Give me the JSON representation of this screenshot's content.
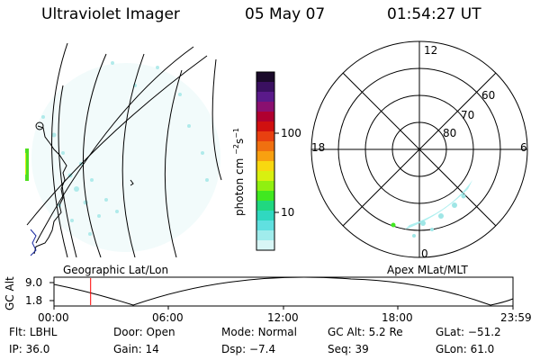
{
  "header": {
    "title": "Ultraviolet Imager",
    "date": "05 May 07",
    "time": "01:54:27 UT"
  },
  "map_labels": {
    "left": "Geographic Lat/Lon",
    "right": "Apex MLat/MLT"
  },
  "colorbar": {
    "unit_label": "photon cm",
    "unit_sup1": "−2",
    "unit_mid": "s",
    "unit_sup2": "−1",
    "ticks": [
      "100",
      "10"
    ],
    "colors": [
      "#1a0a2a",
      "#3a1060",
      "#5a1a8a",
      "#8a1070",
      "#b00030",
      "#d01010",
      "#e84010",
      "#f07010",
      "#f8a010",
      "#f8d810",
      "#d8f010",
      "#90f010",
      "#40e820",
      "#20d880",
      "#30d8c0",
      "#60e0e0",
      "#a0ecec",
      "#d8f6f6"
    ]
  },
  "polar": {
    "mlt": [
      "12",
      "18",
      "6",
      "0"
    ],
    "mlat": [
      "60",
      "70",
      "80"
    ]
  },
  "timeline": {
    "ylabel": "GC Alt",
    "yticks": [
      "9.0",
      "1.8"
    ],
    "xticks": [
      "00:00",
      "06:00",
      "12:00",
      "18:00",
      "23:59"
    ],
    "marker_fraction": 0.0798
  },
  "info": [
    [
      {
        "label": "Flt:",
        "value": "LBHL"
      },
      {
        "label": "Door:",
        "value": "Open"
      },
      {
        "label": "Mode:",
        "value": "Normal"
      },
      {
        "label": "GC Alt:",
        "value": "5.2 Re"
      },
      {
        "label": "GLat:",
        "value": "−51.2"
      }
    ],
    [
      {
        "label": "IP:",
        "value": "36.0"
      },
      {
        "label": "Gain:",
        "value": "14"
      },
      {
        "label": "Dsp:",
        "value": "−7.4"
      },
      {
        "label": "Seq:",
        "value": "39"
      },
      {
        "label": "GLon:",
        "value": "61.0"
      }
    ]
  ],
  "colors": {
    "marker": "#ff0000"
  }
}
